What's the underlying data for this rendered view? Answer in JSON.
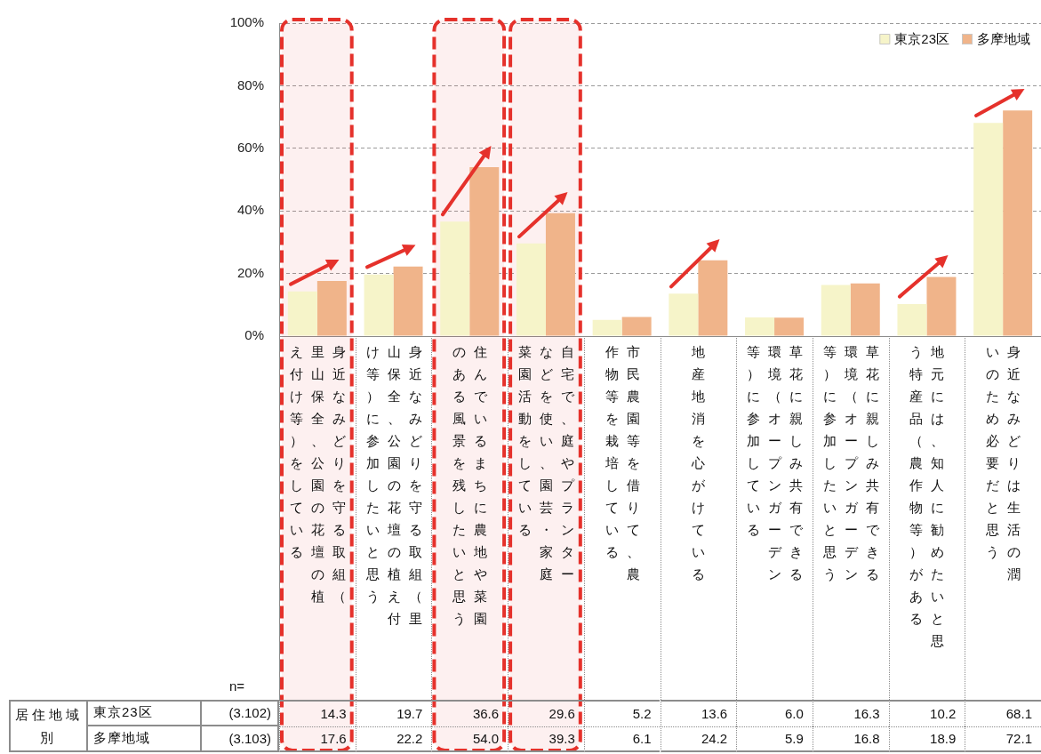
{
  "chart_data": {
    "type": "bar",
    "categories": [
      "身近なみどりを守る取組（里山保全、公園の花壇の植え付け等）をしている",
      "身近なみどりを守る取組（里山保全、公園の花壇の植え付け等）に参加したいと思う",
      "住んでいるまちに農地や菜園のある風景を残したいと思う",
      "自宅で、庭やプランターなどを使い、園芸・家庭菜園活動をしている",
      "市民農園等を借りて、農作物等を栽培している",
      "地産地消を心がけている",
      "草花に親しみ共有できる環境（オープンガーデン等）に参加している",
      "草花に親しみ共有できる環境（オープンガーデン等）に参加したいと思う",
      "地元には、知人に勧めたいと思う特産品（農作物等）がある",
      "身近なみどりは生活の潤いのため必要だと思う"
    ],
    "series": [
      {
        "name": "東京23区",
        "color": "#f6f4c9",
        "values": [
          14.3,
          19.7,
          36.6,
          29.6,
          5.2,
          13.6,
          6.0,
          16.3,
          10.2,
          68.1
        ],
        "value_labels": [
          "14.3",
          "19.7",
          "36.6",
          "29.6",
          "5.2",
          "13.6",
          "6.0",
          "16.3",
          "10.2",
          "68.1"
        ]
      },
      {
        "name": "多摩地域",
        "color": "#f0b48a",
        "values": [
          17.6,
          22.2,
          54.0,
          39.3,
          6.1,
          24.2,
          5.9,
          16.8,
          18.9,
          72.1
        ],
        "value_labels": [
          "17.6",
          "22.2",
          "54.0",
          "39.3",
          "6.1",
          "24.2",
          "5.9",
          "16.8",
          "18.9",
          "72.1"
        ]
      }
    ],
    "ylim": [
      0,
      100
    ],
    "yticks": [
      {
        "value": 0,
        "label": "0%"
      },
      {
        "value": 20,
        "label": "20%"
      },
      {
        "value": 40,
        "label": "40%"
      },
      {
        "value": 60,
        "label": "60%"
      },
      {
        "value": 80,
        "label": "80%"
      },
      {
        "value": 100,
        "label": "100%"
      }
    ],
    "grid": "y",
    "legend": "top right",
    "bands": [
      {
        "axis": "x",
        "from": "身近なみどりを守る取組（里山保全、公園の花壇の植え付け等）をしている",
        "to": "身近なみどりを守る取組（里山保全、公園の花壇の植え付け等）をしている",
        "color": "#e5312b"
      },
      {
        "axis": "x",
        "from": "住んでいるまちに農地や菜園のある風景を残したいと思う",
        "to": "住んでいるまちに農地や菜園のある風景を残したいと思う",
        "color": "#e5312b"
      },
      {
        "axis": "x",
        "from": "自宅で、庭やプランターなどを使い、園芸・家庭菜園活動をしている",
        "to": "自宅で、庭やプランターなどを使い、園芸・家庭菜園活動をしている",
        "color": "#e5312b"
      }
    ],
    "annotations": [
      "n=",
      "居住地域別",
      "(3.102)",
      "(3.103)"
    ]
  }
}
